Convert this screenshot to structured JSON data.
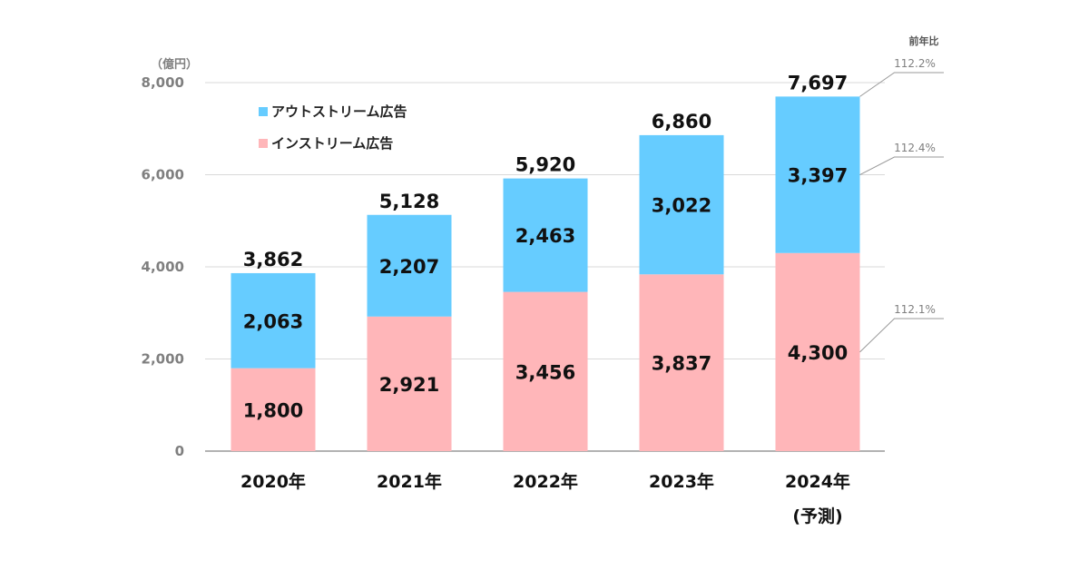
{
  "chart_data": {
    "type": "bar",
    "stacked": true,
    "unit_label": "（億円）",
    "yoy_header": "前年比",
    "categories": [
      "2020年",
      "2021年",
      "2022年",
      "2023年",
      "2024年"
    ],
    "category_notes": [
      "",
      "",
      "",
      "",
      "(予測)"
    ],
    "series": [
      {
        "name": "インストリーム広告",
        "color": "#ffb6b9",
        "values": [
          1800,
          2921,
          3456,
          3837,
          4300
        ]
      },
      {
        "name": "アウトストリーム広告",
        "color": "#66ccff",
        "values": [
          2063,
          2207,
          2463,
          3022,
          3397
        ]
      }
    ],
    "totals": [
      3862,
      5128,
      5920,
      6860,
      7697
    ],
    "yoy": {
      "total": "112.2%",
      "outstream": "112.4%",
      "instream": "112.1%"
    },
    "legend_order": [
      "アウトストリーム広告",
      "インストリーム広告"
    ],
    "legend_placement": "top-left",
    "ylim": [
      0,
      8000
    ],
    "yticks": [
      0,
      2000,
      4000,
      6000,
      8000
    ],
    "ytick_labels": [
      "0",
      "2,000",
      "4,000",
      "6,000",
      "8,000"
    ],
    "grid": true
  }
}
